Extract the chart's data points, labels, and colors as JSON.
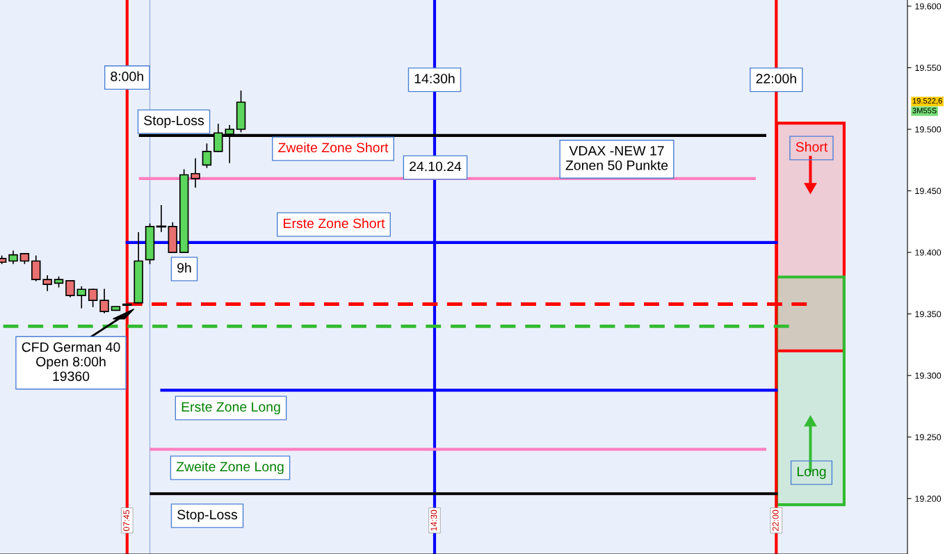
{
  "chart_data": {
    "type": "candlestick",
    "x": [
      5.0,
      5.25,
      5.5,
      5.75,
      6.0,
      6.25,
      6.5,
      6.75,
      7.0,
      7.25,
      7.5,
      7.75,
      8.0,
      8.25,
      8.5,
      8.75,
      9.0,
      9.25,
      9.5,
      9.75,
      10.0,
      10.25
    ],
    "ohlc": [
      [
        19395,
        19397,
        19391,
        19392
      ],
      [
        19393,
        19401,
        19391,
        19398
      ],
      [
        19399,
        19399,
        19391,
        19393
      ],
      [
        19393,
        19397,
        19377,
        19378
      ],
      [
        19378,
        19381,
        19369,
        19374
      ],
      [
        19375,
        19380,
        19372,
        19378
      ],
      [
        19377,
        19377,
        19364,
        19365
      ],
      [
        19365,
        19372,
        19355,
        19370
      ],
      [
        19370,
        19370,
        19356,
        19361
      ],
      [
        19361,
        19370,
        19351,
        19352
      ],
      [
        19353,
        19356,
        19353,
        19356
      ],
      [
        19357,
        19358,
        19357,
        19358
      ],
      [
        19359,
        19416,
        19359,
        19393
      ],
      [
        19394,
        19423,
        19391,
        19421
      ],
      [
        19421,
        19438,
        19417,
        19421
      ],
      [
        19421,
        19424,
        19400,
        19400
      ],
      [
        19400,
        19467,
        19400,
        19463
      ],
      [
        19464,
        19476,
        19453,
        19460
      ],
      [
        19471,
        19488,
        19469,
        19482
      ],
      [
        19482,
        19504,
        19482,
        19497
      ],
      [
        19496,
        19503,
        19473,
        19500
      ],
      [
        19500,
        19531,
        19498,
        19522
      ]
    ],
    "colors": [
      "#e87070",
      "#5cd65c",
      "#e87070",
      "#e87070",
      "#e87070",
      "#5cd65c",
      "#e87070",
      "#5cd65c",
      "#e87070",
      "#e87070",
      "#5cd65c",
      "#5cd65c",
      "#5cd65c",
      "#5cd65c",
      "#000000",
      "#e87070",
      "#5cd65c",
      "#e87070",
      "#5cd65c",
      "#5cd65c",
      "#5cd65c",
      "#5cd65c"
    ],
    "series": [
      {
        "type": "line",
        "x": [
          8.04,
          21.75
        ],
        "values": [
          19495,
          19495
        ],
        "color": "#000000",
        "line_style": "solid"
      },
      {
        "type": "line",
        "x": [
          8.04,
          21.52
        ],
        "values": [
          19460,
          19460
        ],
        "color": "#ff80c0",
        "line_style": "solid"
      },
      {
        "type": "line",
        "x": [
          7.75,
          22.0
        ],
        "values": [
          19408,
          19408
        ],
        "color": "#0000ff",
        "line_style": "solid"
      },
      {
        "type": "line",
        "x": [
          7.75,
          22.67
        ],
        "values": [
          19358,
          19358
        ],
        "color": "#ff0000",
        "line_style": "dashed"
      },
      {
        "type": "line",
        "x": [
          5.03,
          22.28
        ],
        "values": [
          19340,
          19340
        ],
        "color": "#33bb33",
        "line_style": "dashed"
      },
      {
        "type": "line",
        "x": [
          8.51,
          22.0
        ],
        "values": [
          19288,
          19288
        ],
        "color": "#0000ff",
        "line_style": "solid"
      },
      {
        "type": "line",
        "x": [
          8.28,
          21.75
        ],
        "values": [
          19240,
          19240
        ],
        "color": "#ff80c0",
        "line_style": "solid"
      },
      {
        "type": "line",
        "x": [
          8.28,
          22.0
        ],
        "values": [
          19204,
          19204
        ],
        "color": "#000000",
        "line_style": "solid"
      },
      {
        "type": "bar",
        "x": [
          22.75
        ],
        "base": [
          19320
        ],
        "values": [
          185
        ],
        "color": "#ff0000"
      },
      {
        "type": "bar",
        "x": [
          22.75
        ],
        "base": [
          19195
        ],
        "values": [
          185
        ],
        "color": "#33bb33"
      }
    ],
    "ref_lines": [
      {
        "axis": "x",
        "value": 7.75,
        "label": "8:00h",
        "color": "#ff0000"
      },
      {
        "axis": "x",
        "value": 14.5,
        "label": "14:30h",
        "color": "#0000ff"
      },
      {
        "axis": "x",
        "value": 22.0,
        "label": "22:00h",
        "color": "#ff0000"
      },
      {
        "axis": "x",
        "value": 8.25,
        "color": "#a0b4e0"
      }
    ],
    "annotations": [
      "Stop-Loss",
      "Zweite Zone Short",
      "24.10.24",
      "VDAX -NEW 17\nZonen 50 Punkte",
      "Erste Zone Short",
      "9h",
      "CFD German 40\nOpen 8:00h\n19360",
      "Erste Zone Long",
      "Zweite Zone Long",
      "Stop-Loss",
      "Short",
      "Long",
      "19.522,6",
      "3M55S"
    ],
    "xlim": [
      4.96,
      24.88
    ],
    "xticks": [
      {
        "value": 7.75,
        "label": "07:45"
      },
      {
        "value": 14.5,
        "label": "14:30"
      },
      {
        "value": 22.0,
        "label": "22:00"
      }
    ],
    "ylim": [
      19155,
      19605
    ],
    "yticks": [
      {
        "value": 19200,
        "label": "19.200"
      },
      {
        "value": 19250,
        "label": "19.250"
      },
      {
        "value": 19300,
        "label": "19.300"
      },
      {
        "value": 19350,
        "label": "19.350"
      },
      {
        "value": 19400,
        "label": "19.400"
      },
      {
        "value": 19450,
        "label": "19.450"
      },
      {
        "value": 19500,
        "label": "19.500"
      },
      {
        "value": 19550,
        "label": "19.550"
      },
      {
        "value": 19600,
        "label": "19.600"
      }
    ],
    "grid": false
  }
}
